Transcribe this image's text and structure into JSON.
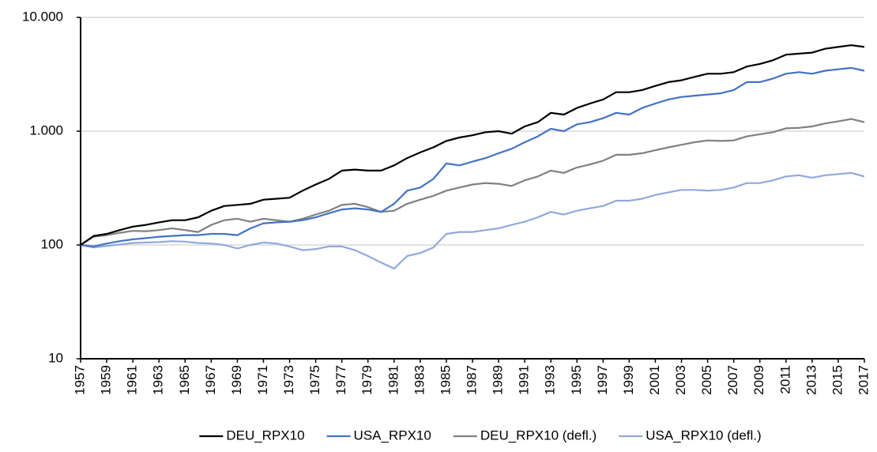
{
  "chart_data": {
    "type": "line",
    "log_scale": true,
    "grid": true,
    "legend": "bottom",
    "x": [
      1957,
      1958,
      1959,
      1960,
      1961,
      1962,
      1963,
      1964,
      1965,
      1966,
      1967,
      1968,
      1969,
      1970,
      1971,
      1972,
      1973,
      1974,
      1975,
      1976,
      1977,
      1978,
      1979,
      1980,
      1981,
      1982,
      1983,
      1984,
      1985,
      1986,
      1987,
      1988,
      1989,
      1990,
      1991,
      1992,
      1993,
      1994,
      1995,
      1996,
      1997,
      1998,
      1999,
      2000,
      2001,
      2002,
      2003,
      2004,
      2005,
      2006,
      2007,
      2008,
      2009,
      2010,
      2011,
      2012,
      2013,
      2014,
      2015,
      2016,
      2017
    ],
    "xlim": [
      1957,
      2017
    ],
    "xticks": [
      1957,
      1959,
      1961,
      1963,
      1965,
      1967,
      1969,
      1971,
      1973,
      1975,
      1977,
      1979,
      1981,
      1983,
      1985,
      1987,
      1989,
      1991,
      1993,
      1995,
      1997,
      1999,
      2001,
      2003,
      2005,
      2007,
      2009,
      2011,
      2013,
      2015,
      2017
    ],
    "ylim": [
      10,
      10000
    ],
    "yticks": [
      10,
      100,
      {
        "value": 1000,
        "label": "1.000"
      },
      {
        "value": 10000,
        "label": "10.000"
      }
    ],
    "series": [
      {
        "name": "DEU_RPX10",
        "color": "#000000",
        "values": [
          100,
          120,
          125,
          135,
          145,
          150,
          158,
          165,
          165,
          175,
          200,
          220,
          225,
          230,
          250,
          255,
          260,
          300,
          340,
          380,
          450,
          460,
          450,
          450,
          500,
          580,
          650,
          720,
          820,
          880,
          920,
          980,
          1000,
          950,
          1100,
          1200,
          1450,
          1400,
          1600,
          1750,
          1900,
          2200,
          2200,
          2300,
          2500,
          2700,
          2800,
          3000,
          3200,
          3200,
          3300,
          3700,
          3900,
          4200,
          4700,
          4800,
          4900,
          5300,
          5500,
          5700,
          5500
        ]
      },
      {
        "name": "USA_RPX10",
        "color": "#4472c4",
        "values": [
          100,
          97,
          103,
          108,
          112,
          115,
          118,
          120,
          122,
          122,
          125,
          125,
          122,
          140,
          155,
          158,
          160,
          165,
          175,
          190,
          205,
          210,
          205,
          195,
          230,
          300,
          320,
          380,
          520,
          500,
          540,
          580,
          640,
          700,
          800,
          900,
          1050,
          1000,
          1150,
          1200,
          1300,
          1450,
          1400,
          1600,
          1750,
          1900,
          2000,
          2050,
          2100,
          2150,
          2300,
          2700,
          2700,
          2900,
          3200,
          3300,
          3200,
          3400,
          3500,
          3600,
          3400
        ]
      },
      {
        "name": "DEU_RPX10 (defl.)",
        "color": "#808080",
        "values": [
          100,
          118,
          122,
          128,
          133,
          132,
          135,
          140,
          135,
          130,
          150,
          165,
          170,
          160,
          170,
          165,
          160,
          170,
          185,
          200,
          225,
          230,
          215,
          195,
          200,
          230,
          250,
          270,
          300,
          320,
          340,
          350,
          345,
          330,
          370,
          400,
          450,
          430,
          480,
          510,
          550,
          620,
          620,
          640,
          680,
          720,
          760,
          800,
          830,
          820,
          830,
          900,
          940,
          980,
          1060,
          1070,
          1100,
          1170,
          1220,
          1280,
          1200
        ]
      },
      {
        "name": "USA_RPX10 (defl.)",
        "color": "#8faadc",
        "values": [
          100,
          95,
          98,
          101,
          104,
          105,
          106,
          108,
          107,
          104,
          103,
          100,
          93,
          100,
          105,
          103,
          97,
          90,
          92,
          97,
          97,
          90,
          80,
          70,
          62,
          80,
          85,
          95,
          125,
          130,
          130,
          135,
          140,
          150,
          160,
          175,
          195,
          185,
          200,
          210,
          220,
          245,
          245,
          255,
          275,
          290,
          305,
          305,
          300,
          305,
          320,
          350,
          350,
          370,
          400,
          410,
          390,
          410,
          420,
          430,
          400
        ]
      }
    ]
  }
}
